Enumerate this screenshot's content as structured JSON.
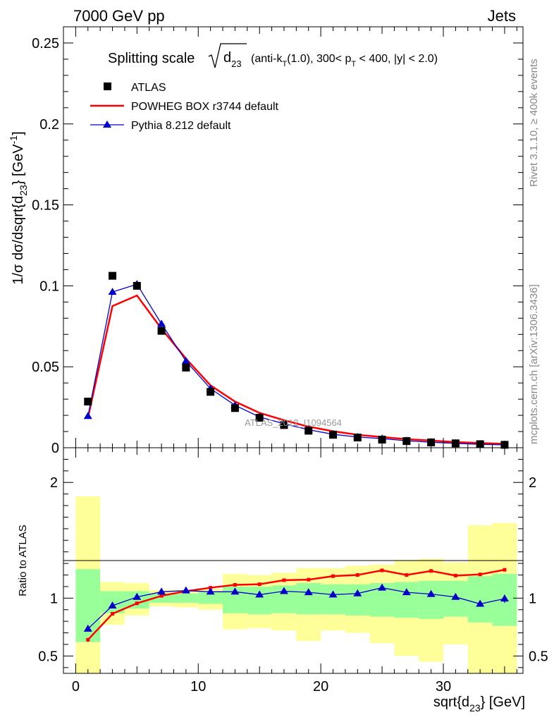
{
  "header": {
    "left": "7000 GeV pp",
    "right": "Jets"
  },
  "side_labels": {
    "rivet": "Rivet 3.1.10, ≥ 400k events",
    "mcplots": "mcplots.cern.ch [arXiv:1306.3436]"
  },
  "watermark": "ATLAS_2012_I1094564",
  "chart_data": [
    {
      "type": "scatter",
      "panel": "main",
      "title": {
        "prefix": "Splitting scale",
        "sqrt_var": "d",
        "sqrt_sub": "23",
        "p1": "(anti-k",
        "sub_T1": "T",
        "p2": "(1.0), 300< p",
        "sub_T2": "T",
        "p3": " < 400, |y| < 2.0)"
      },
      "ylabel": {
        "a": "1/σ dσ/dsqrt{d",
        "sub": "23",
        "b": "} [GeV",
        "sup": "-1",
        "c": "]"
      },
      "xlim": [
        -1,
        36.5
      ],
      "ylim": [
        0,
        0.26
      ],
      "yticks": [
        0,
        0.05,
        0.1,
        0.15,
        0.2,
        0.25
      ],
      "ytick_labels": [
        "0",
        "0.05",
        "0.1",
        "0.15",
        "0.2",
        "0.25"
      ],
      "x": [
        1,
        3,
        5,
        7,
        9,
        11,
        13,
        15,
        17,
        19,
        21,
        23,
        25,
        27,
        29,
        31,
        33,
        35
      ],
      "series": [
        {
          "name": "ATLAS",
          "style": "square",
          "color": "#000000",
          "values": [
            0.0285,
            0.1062,
            0.1,
            0.0722,
            0.0495,
            0.0345,
            0.0245,
            0.0185,
            0.014,
            0.0105,
            0.008,
            0.0063,
            0.005,
            0.0041,
            0.0033,
            0.0027,
            0.0022,
            0.0018
          ]
        },
        {
          "name": "POWHEG BOX r3744 default",
          "style": "line",
          "color": "#ff0000",
          "values": [
            0.0185,
            0.0875,
            0.094,
            0.0735,
            0.055,
            0.0385,
            0.0285,
            0.0215,
            0.017,
            0.013,
            0.0102,
            0.008,
            0.0066,
            0.0053,
            0.0044,
            0.0035,
            0.0029,
            0.0024
          ]
        },
        {
          "name": "Pythia 8.212 default",
          "style": "triangle",
          "color": "#0000cc",
          "values": [
            0.0195,
            0.0962,
            0.101,
            0.0765,
            0.0535,
            0.0365,
            0.0262,
            0.019,
            0.0148,
            0.0111,
            0.0083,
            0.0066,
            0.0056,
            0.0043,
            0.0034,
            0.0027,
            0.0021,
            0.0018
          ]
        }
      ]
    },
    {
      "type": "line",
      "panel": "ratio",
      "ylabel": "Ratio to ATLAS",
      "xlabel": {
        "a": "sqrt{d",
        "sub": "23",
        "b": "} [GeV]"
      },
      "xlim": [
        -1,
        36.5
      ],
      "ylim": [
        0.35,
        2.3
      ],
      "yticks": [
        0.5,
        1,
        2
      ],
      "ytick_labels": [
        "0.5",
        "1",
        "2"
      ],
      "xticks": [
        0,
        10,
        20,
        30
      ],
      "xtick_labels": [
        "0",
        "10",
        "20",
        "30"
      ],
      "bins": [
        [
          0,
          2
        ],
        [
          2,
          4
        ],
        [
          4,
          6
        ],
        [
          6,
          8
        ],
        [
          8,
          10
        ],
        [
          10,
          12
        ],
        [
          12,
          14
        ],
        [
          14,
          16
        ],
        [
          16,
          18
        ],
        [
          18,
          20
        ],
        [
          20,
          22
        ],
        [
          22,
          24
        ],
        [
          24,
          26
        ],
        [
          26,
          28
        ],
        [
          28,
          30
        ],
        [
          30,
          32
        ],
        [
          32,
          34
        ],
        [
          34,
          36
        ]
      ],
      "band_1sigma": [
        [
          0.62,
          1.25
        ],
        [
          0.87,
          1.06
        ],
        [
          0.91,
          1.06
        ],
        [
          0.96,
          1.04
        ],
        [
          0.96,
          1.04
        ],
        [
          0.95,
          1.05
        ],
        [
          0.87,
          1.1
        ],
        [
          0.86,
          1.1
        ],
        [
          0.87,
          1.11
        ],
        [
          0.86,
          1.13
        ],
        [
          0.86,
          1.12
        ],
        [
          0.85,
          1.12
        ],
        [
          0.84,
          1.13
        ],
        [
          0.83,
          1.14
        ],
        [
          0.82,
          1.15
        ],
        [
          0.84,
          1.15
        ],
        [
          0.79,
          1.19
        ],
        [
          0.76,
          1.21
        ]
      ],
      "band_2sigma": [
        [
          0.35,
          1.88
        ],
        [
          0.77,
          1.14
        ],
        [
          0.85,
          1.13
        ],
        [
          0.93,
          1.07
        ],
        [
          0.92,
          1.07
        ],
        [
          0.9,
          1.08
        ],
        [
          0.73,
          1.21
        ],
        [
          0.74,
          1.2
        ],
        [
          0.72,
          1.22
        ],
        [
          0.63,
          1.26
        ],
        [
          0.72,
          1.26
        ],
        [
          0.7,
          1.28
        ],
        [
          0.61,
          1.29
        ],
        [
          0.5,
          1.33
        ],
        [
          0.45,
          1.34
        ],
        [
          0.6,
          1.31
        ],
        [
          0.35,
          1.63
        ],
        [
          0.35,
          1.65
        ]
      ],
      "x": [
        1,
        3,
        5,
        7,
        9,
        11,
        13,
        15,
        17,
        19,
        21,
        23,
        25,
        27,
        29,
        31,
        33,
        35
      ],
      "series": [
        {
          "name": "POWHEG BOX r3744 default",
          "style": "line-square",
          "color": "#ff0000",
          "values": [
            0.64,
            0.865,
            0.955,
            1.02,
            1.06,
            1.09,
            1.115,
            1.12,
            1.155,
            1.16,
            1.19,
            1.2,
            1.24,
            1.2,
            1.235,
            1.195,
            1.205,
            1.245
          ]
        },
        {
          "name": "Pythia 8.212 default",
          "style": "line-triangle",
          "color": "#0000cc",
          "values": [
            0.735,
            0.935,
            1.01,
            1.055,
            1.065,
            1.055,
            1.055,
            1.03,
            1.06,
            1.05,
            1.03,
            1.04,
            1.09,
            1.05,
            1.035,
            1.01,
            0.95,
            0.995
          ]
        }
      ]
    }
  ]
}
